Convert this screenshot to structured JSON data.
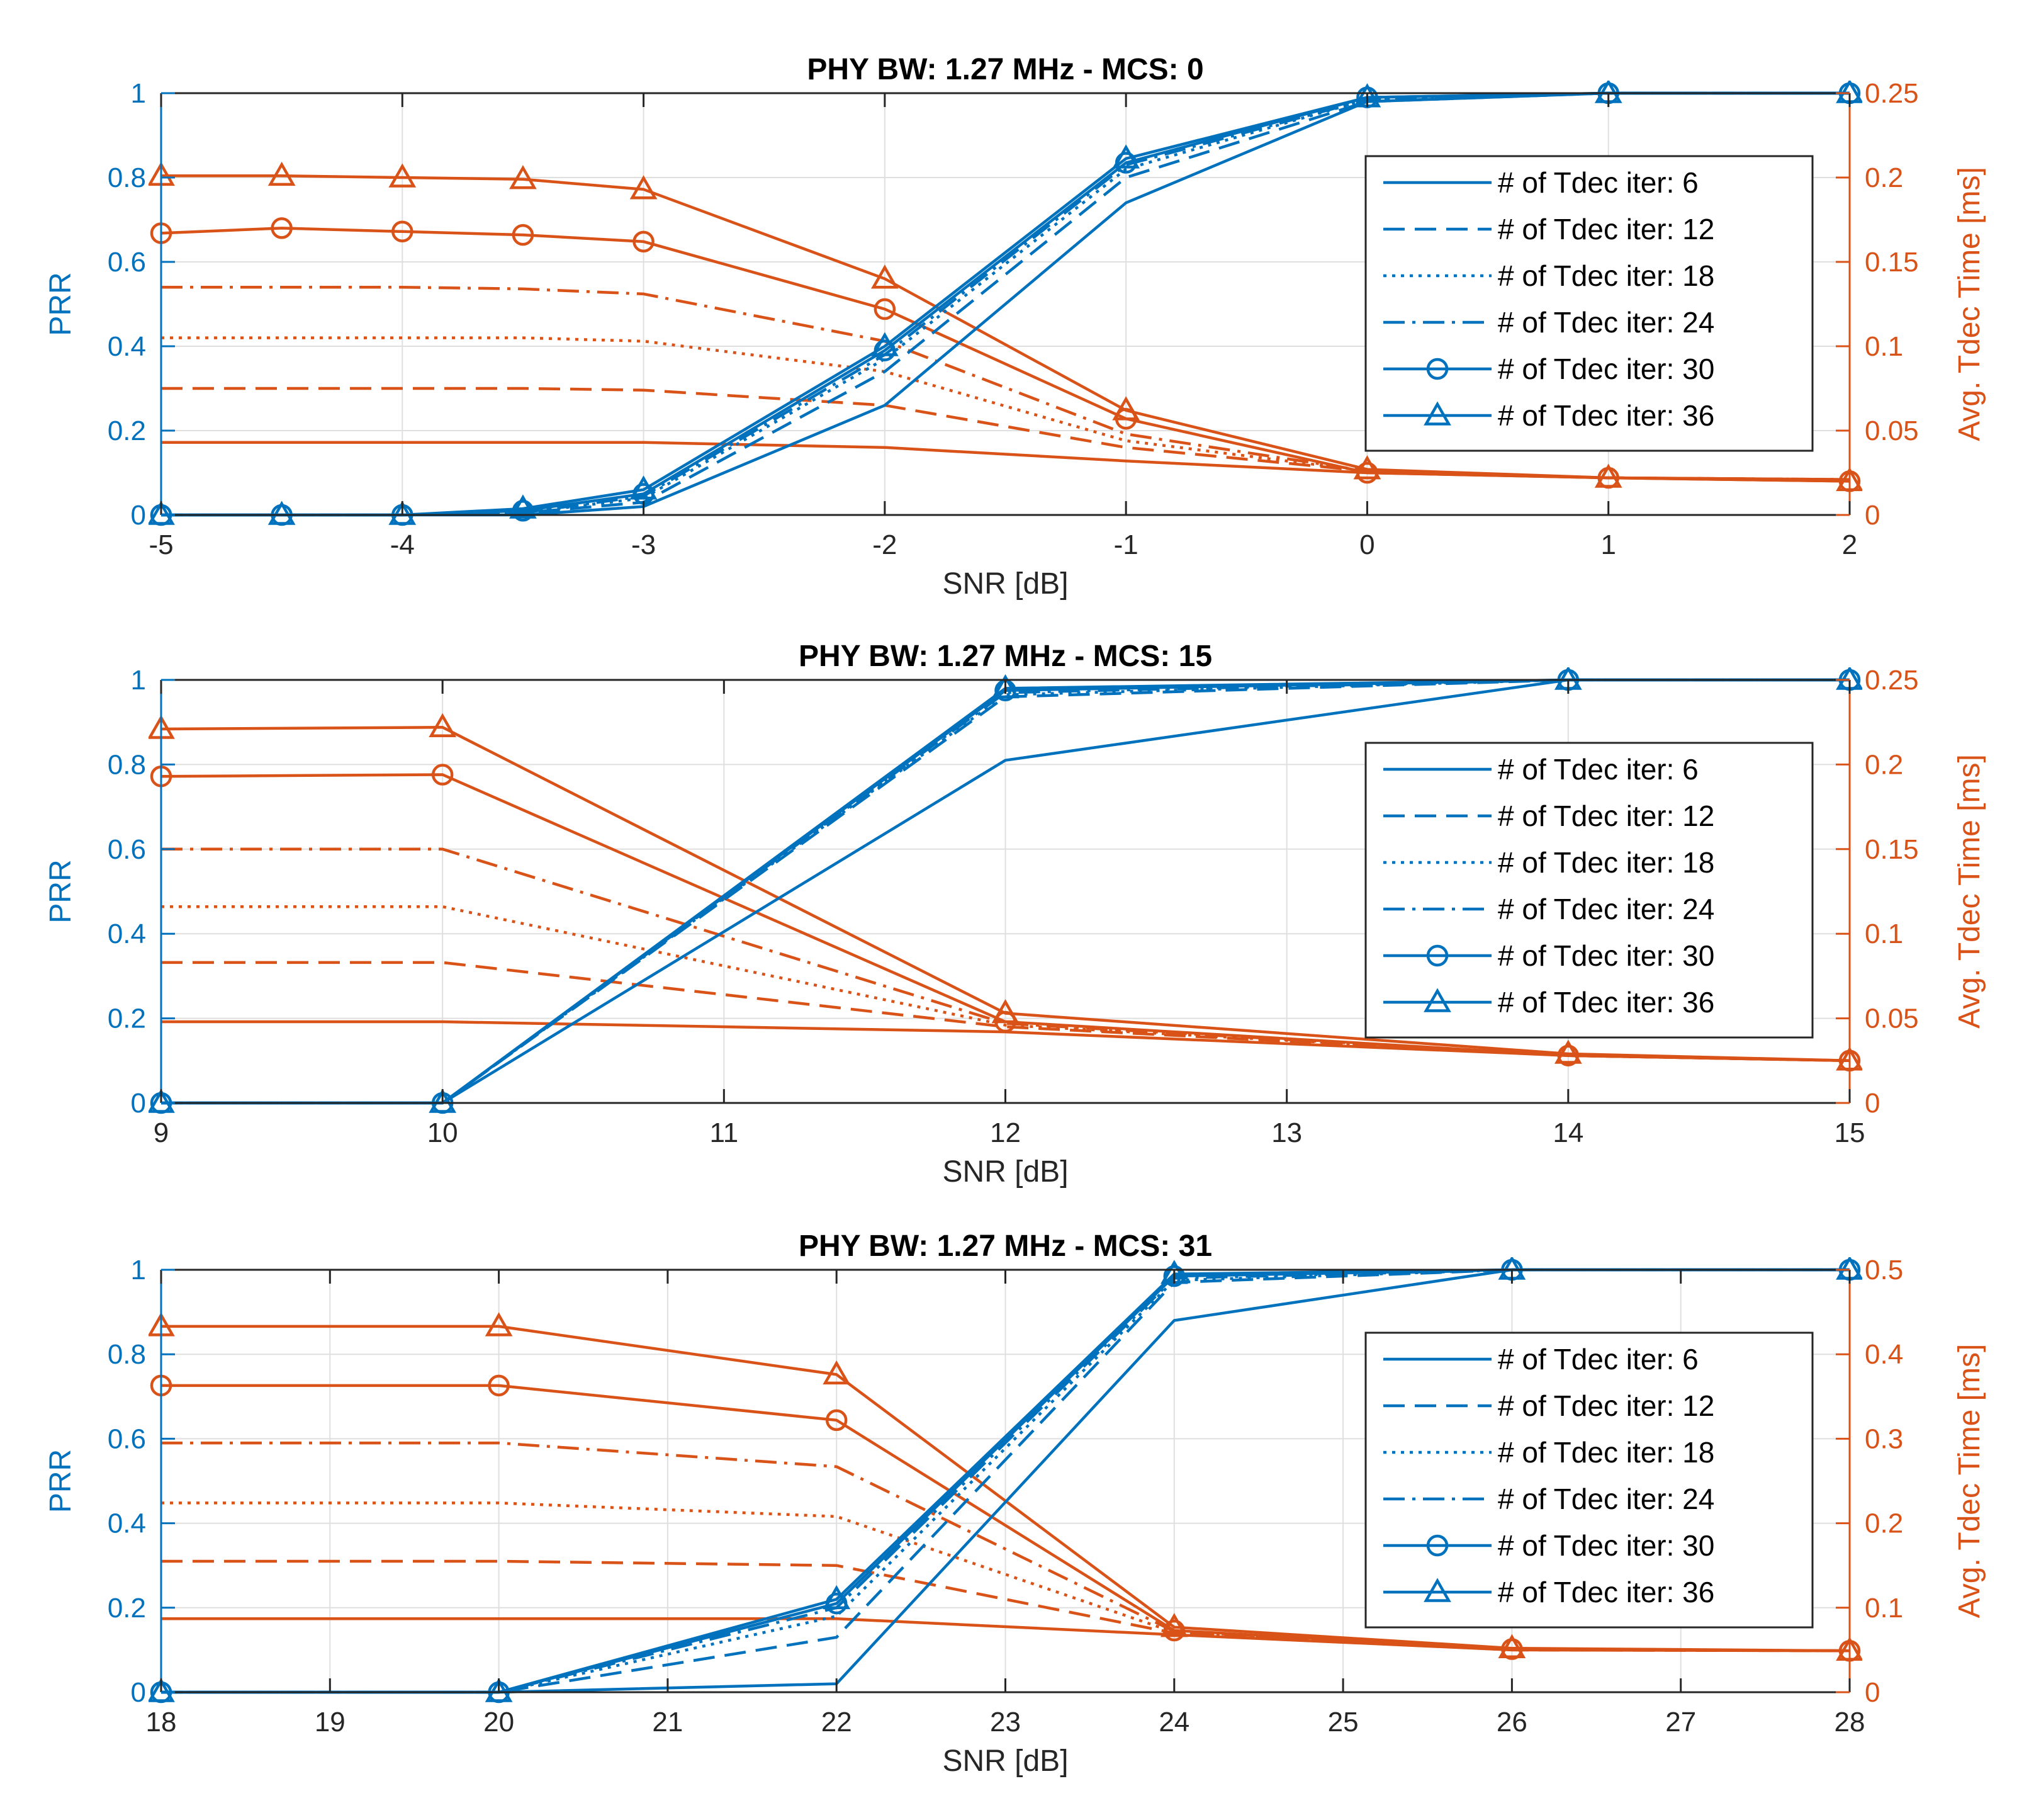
{
  "figure": {
    "colors": {
      "prr": "#0072BD",
      "tdec": "#D95319",
      "grid": "#DFDFDF",
      "axis": "#262626"
    }
  },
  "chart_data": [
    {
      "type": "line",
      "title": "PHY BW: 1.27 MHz - MCS: 0",
      "xlabel": "SNR [dB]",
      "ylabel_left": "PRR",
      "ylabel_right": "Avg. Tdec Time [ms]",
      "xlim": [
        -5,
        2
      ],
      "ylim_left": [
        0,
        1
      ],
      "ylim_right": [
        0,
        0.25
      ],
      "xticks": [
        -5,
        -4,
        -3,
        -2,
        -1,
        0,
        1,
        2
      ],
      "xtick_labels": [
        "-5",
        "-4",
        "-3",
        "-2",
        "-1",
        "0",
        "1",
        "2"
      ],
      "yticks_left": [
        0,
        0.2,
        0.4,
        0.6,
        0.8,
        1
      ],
      "ytick_labels_left": [
        "0",
        "0.2",
        "0.4",
        "0.6",
        "0.8",
        "1"
      ],
      "yticks_right": [
        0,
        0.05,
        0.1,
        0.15,
        0.2,
        0.25
      ],
      "ytick_labels_right": [
        "0",
        "0.05",
        "0.1",
        "0.15",
        "0.2",
        "0.25"
      ],
      "grid": true,
      "legend_position": "right",
      "x": [
        -5,
        -4.5,
        -4,
        -3.5,
        -3,
        -2,
        -1,
        0,
        1,
        2
      ],
      "series": [
        {
          "name": "# of Tdec iter: 6",
          "line": "solid",
          "marker": "none",
          "prr": [
            0,
            0,
            0,
            0,
            0.02,
            0.26,
            0.74,
            0.98,
            1,
            1
          ],
          "tdec": [
            0.043,
            0.043,
            0.043,
            0.043,
            0.043,
            0.04,
            0.032,
            0.025,
            0.022,
            0.021
          ]
        },
        {
          "name": "# of Tdec iter: 12",
          "line": "dashed",
          "marker": "none",
          "prr": [
            0,
            0,
            0,
            0.005,
            0.03,
            0.34,
            0.8,
            0.98,
            1,
            1
          ],
          "tdec": [
            0.075,
            0.075,
            0.075,
            0.075,
            0.074,
            0.065,
            0.04,
            0.026,
            0.022,
            0.021
          ]
        },
        {
          "name": "# of Tdec iter: 18",
          "line": "dotted",
          "marker": "none",
          "prr": [
            0,
            0,
            0,
            0.005,
            0.04,
            0.37,
            0.82,
            0.985,
            1,
            1
          ],
          "tdec": [
            0.105,
            0.105,
            0.105,
            0.105,
            0.103,
            0.085,
            0.044,
            0.026,
            0.022,
            0.021
          ]
        },
        {
          "name": "# of Tdec iter: 24",
          "line": "dashdot",
          "marker": "none",
          "prr": [
            0,
            0,
            0,
            0.005,
            0.045,
            0.38,
            0.83,
            0.985,
            1,
            1
          ],
          "tdec": [
            0.135,
            0.135,
            0.135,
            0.134,
            0.131,
            0.103,
            0.048,
            0.026,
            0.022,
            0.021
          ]
        },
        {
          "name": "# of Tdec iter: 30",
          "line": "solid",
          "marker": "circle",
          "prr": [
            0,
            0,
            0,
            0.01,
            0.05,
            0.39,
            0.835,
            0.99,
            1,
            1
          ],
          "tdec": [
            0.167,
            0.17,
            0.168,
            0.166,
            0.162,
            0.122,
            0.057,
            0.025,
            0.022,
            0.02
          ]
        },
        {
          "name": "# of Tdec iter: 36",
          "line": "solid",
          "marker": "triangle",
          "prr": [
            0,
            0,
            0,
            0.015,
            0.06,
            0.4,
            0.845,
            0.99,
            1,
            1
          ],
          "tdec": [
            0.201,
            0.201,
            0.2,
            0.199,
            0.193,
            0.14,
            0.062,
            0.027,
            0.022,
            0.02
          ]
        }
      ]
    },
    {
      "type": "line",
      "title": "PHY BW: 1.27 MHz - MCS: 15",
      "xlabel": "SNR [dB]",
      "ylabel_left": "PRR",
      "ylabel_right": "Avg. Tdec Time [ms]",
      "xlim": [
        9,
        15
      ],
      "ylim_left": [
        0,
        1
      ],
      "ylim_right": [
        0,
        0.25
      ],
      "xticks": [
        9,
        10,
        11,
        12,
        13,
        14,
        15
      ],
      "xtick_labels": [
        "9",
        "10",
        "11",
        "12",
        "13",
        "14",
        "15"
      ],
      "yticks_left": [
        0,
        0.2,
        0.4,
        0.6,
        0.8,
        1
      ],
      "ytick_labels_left": [
        "0",
        "0.2",
        "0.4",
        "0.6",
        "0.8",
        "1"
      ],
      "yticks_right": [
        0,
        0.05,
        0.1,
        0.15,
        0.2,
        0.25
      ],
      "ytick_labels_right": [
        "0",
        "0.05",
        "0.1",
        "0.15",
        "0.2",
        "0.25"
      ],
      "grid": true,
      "legend_position": "right",
      "x": [
        9,
        10,
        12,
        14,
        15
      ],
      "series": [
        {
          "name": "# of Tdec iter: 6",
          "line": "solid",
          "marker": "none",
          "prr": [
            0,
            0,
            0.81,
            1,
            1
          ],
          "tdec": [
            0.048,
            0.048,
            0.042,
            0.028,
            0.025
          ]
        },
        {
          "name": "# of Tdec iter: 12",
          "line": "dashed",
          "marker": "none",
          "prr": [
            0,
            0,
            0.96,
            1,
            1
          ],
          "tdec": [
            0.083,
            0.083,
            0.045,
            0.028,
            0.025
          ]
        },
        {
          "name": "# of Tdec iter: 18",
          "line": "dotted",
          "marker": "none",
          "prr": [
            0,
            0,
            0.965,
            1,
            1
          ],
          "tdec": [
            0.116,
            0.116,
            0.046,
            0.028,
            0.025
          ]
        },
        {
          "name": "# of Tdec iter: 24",
          "line": "dashdot",
          "marker": "none",
          "prr": [
            0,
            0,
            0.97,
            1,
            1
          ],
          "tdec": [
            0.15,
            0.15,
            0.047,
            0.028,
            0.025
          ]
        },
        {
          "name": "# of Tdec iter: 30",
          "line": "solid",
          "marker": "circle",
          "prr": [
            0,
            0,
            0.975,
            1,
            1
          ],
          "tdec": [
            0.193,
            0.194,
            0.048,
            0.028,
            0.025
          ]
        },
        {
          "name": "# of Tdec iter: 36",
          "line": "solid",
          "marker": "triangle",
          "prr": [
            0,
            0,
            0.98,
            1,
            1
          ],
          "tdec": [
            0.221,
            0.222,
            0.053,
            0.029,
            0.025
          ]
        }
      ]
    },
    {
      "type": "line",
      "title": "PHY BW: 1.27 MHz - MCS: 31",
      "xlabel": "SNR [dB]",
      "ylabel_left": "PRR",
      "ylabel_right": "Avg. Tdec Time [ms]",
      "xlim": [
        18,
        28
      ],
      "ylim_left": [
        0,
        1
      ],
      "ylim_right": [
        0,
        0.5
      ],
      "xticks": [
        18,
        19,
        20,
        21,
        22,
        23,
        24,
        25,
        26,
        27,
        28
      ],
      "xtick_labels": [
        "18",
        "19",
        "20",
        "21",
        "22",
        "23",
        "24",
        "25",
        "26",
        "27",
        "28"
      ],
      "yticks_left": [
        0,
        0.2,
        0.4,
        0.6,
        0.8,
        1
      ],
      "ytick_labels_left": [
        "0",
        "0.2",
        "0.4",
        "0.6",
        "0.8",
        "1"
      ],
      "yticks_right": [
        0,
        0.1,
        0.2,
        0.3,
        0.4,
        0.5
      ],
      "ytick_labels_right": [
        "0",
        "0.1",
        "0.2",
        "0.3",
        "0.4",
        "0.5"
      ],
      "grid": true,
      "legend_position": "right",
      "x": [
        18,
        20,
        22,
        24,
        26,
        28
      ],
      "series": [
        {
          "name": "# of Tdec iter: 6",
          "line": "solid",
          "marker": "none",
          "prr": [
            0,
            0,
            0.02,
            0.88,
            1,
            1
          ],
          "tdec": [
            0.087,
            0.087,
            0.087,
            0.068,
            0.05,
            0.049
          ]
        },
        {
          "name": "# of Tdec iter: 12",
          "line": "dashed",
          "marker": "none",
          "prr": [
            0,
            0,
            0.13,
            0.97,
            1,
            1
          ],
          "tdec": [
            0.155,
            0.155,
            0.15,
            0.07,
            0.05,
            0.049
          ]
        },
        {
          "name": "# of Tdec iter: 18",
          "line": "dotted",
          "marker": "none",
          "prr": [
            0,
            0,
            0.18,
            0.975,
            1,
            1
          ],
          "tdec": [
            0.224,
            0.224,
            0.208,
            0.071,
            0.051,
            0.049
          ]
        },
        {
          "name": "# of Tdec iter: 24",
          "line": "dashdot",
          "marker": "none",
          "prr": [
            0,
            0,
            0.2,
            0.98,
            1,
            1
          ],
          "tdec": [
            0.295,
            0.295,
            0.267,
            0.072,
            0.051,
            0.049
          ]
        },
        {
          "name": "# of Tdec iter: 30",
          "line": "solid",
          "marker": "circle",
          "prr": [
            0,
            0,
            0.21,
            0.985,
            1,
            1
          ],
          "tdec": [
            0.363,
            0.363,
            0.322,
            0.073,
            0.051,
            0.049
          ]
        },
        {
          "name": "# of Tdec iter: 36",
          "line": "solid",
          "marker": "triangle",
          "prr": [
            0,
            0,
            0.22,
            0.99,
            1,
            1
          ],
          "tdec": [
            0.433,
            0.433,
            0.376,
            0.077,
            0.052,
            0.049
          ]
        }
      ]
    }
  ]
}
